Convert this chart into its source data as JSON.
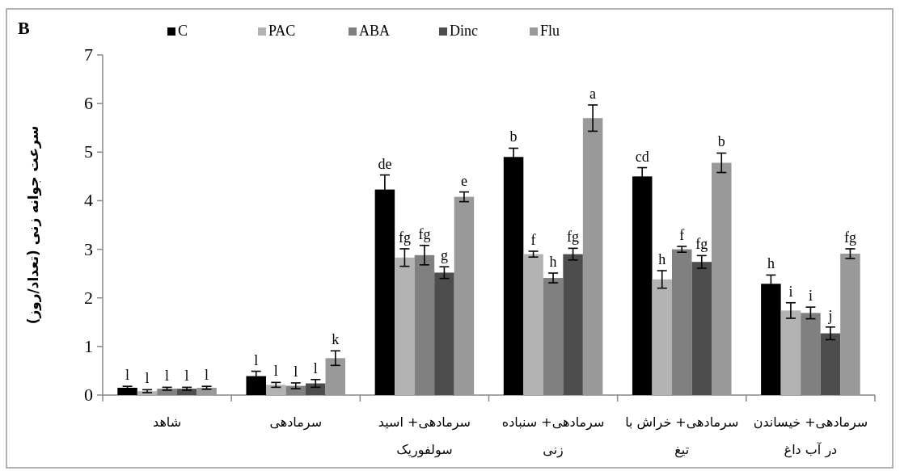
{
  "chart_data": {
    "type": "bar",
    "title": "B",
    "ylabel": "سرعت جوانه زنی (تعداد/روز)",
    "categories": [
      "شاهد",
      "سرمادهی",
      "سرمادهی+ اسید سولفوریک",
      "سرمادهی+ سنباده زنی",
      "سرمادهی+ خراش با تیغ",
      "سرمادهی+ خیساندن در آب داغ"
    ],
    "series": [
      {
        "name": "C",
        "color": "#000000",
        "values": [
          0.15,
          0.39,
          4.23,
          4.9,
          4.5,
          2.29
        ],
        "errors": [
          0.03,
          0.1,
          0.3,
          0.18,
          0.18,
          0.18
        ],
        "value_labels": [
          "l",
          "l",
          "de",
          "b",
          "cd",
          "h"
        ]
      },
      {
        "name": "PAC",
        "color": "#b3b3b3",
        "values": [
          0.08,
          0.21,
          2.83,
          2.9,
          2.38,
          1.74
        ],
        "errors": [
          0.03,
          0.05,
          0.18,
          0.06,
          0.18,
          0.16
        ],
        "value_labels": [
          "l",
          "l",
          "fg",
          "f",
          "h",
          "i"
        ]
      },
      {
        "name": "ABA",
        "color": "#808080",
        "values": [
          0.13,
          0.19,
          2.88,
          2.41,
          3.0,
          1.69
        ],
        "errors": [
          0.03,
          0.06,
          0.2,
          0.1,
          0.06,
          0.12
        ],
        "value_labels": [
          "l",
          "l",
          "fg",
          "h",
          "f",
          "i"
        ]
      },
      {
        "name": "Dinc",
        "color": "#4d4d4d",
        "values": [
          0.13,
          0.24,
          2.52,
          2.9,
          2.74,
          1.27
        ],
        "errors": [
          0.03,
          0.08,
          0.12,
          0.12,
          0.13,
          0.13
        ],
        "value_labels": [
          "l",
          "l",
          "g",
          "fg",
          "fg",
          "j"
        ]
      },
      {
        "name": "Flu",
        "color": "#999999",
        "values": [
          0.15,
          0.76,
          4.08,
          5.7,
          4.78,
          2.91
        ],
        "errors": [
          0.03,
          0.15,
          0.1,
          0.27,
          0.2,
          0.1
        ],
        "value_labels": [
          "l",
          "k",
          "e",
          "a",
          "b",
          "fg"
        ]
      }
    ],
    "ylim": [
      0,
      7
    ],
    "yticks": [
      0,
      1,
      2,
      3,
      4,
      5,
      6,
      7
    ],
    "legend": "top",
    "grid": false
  }
}
